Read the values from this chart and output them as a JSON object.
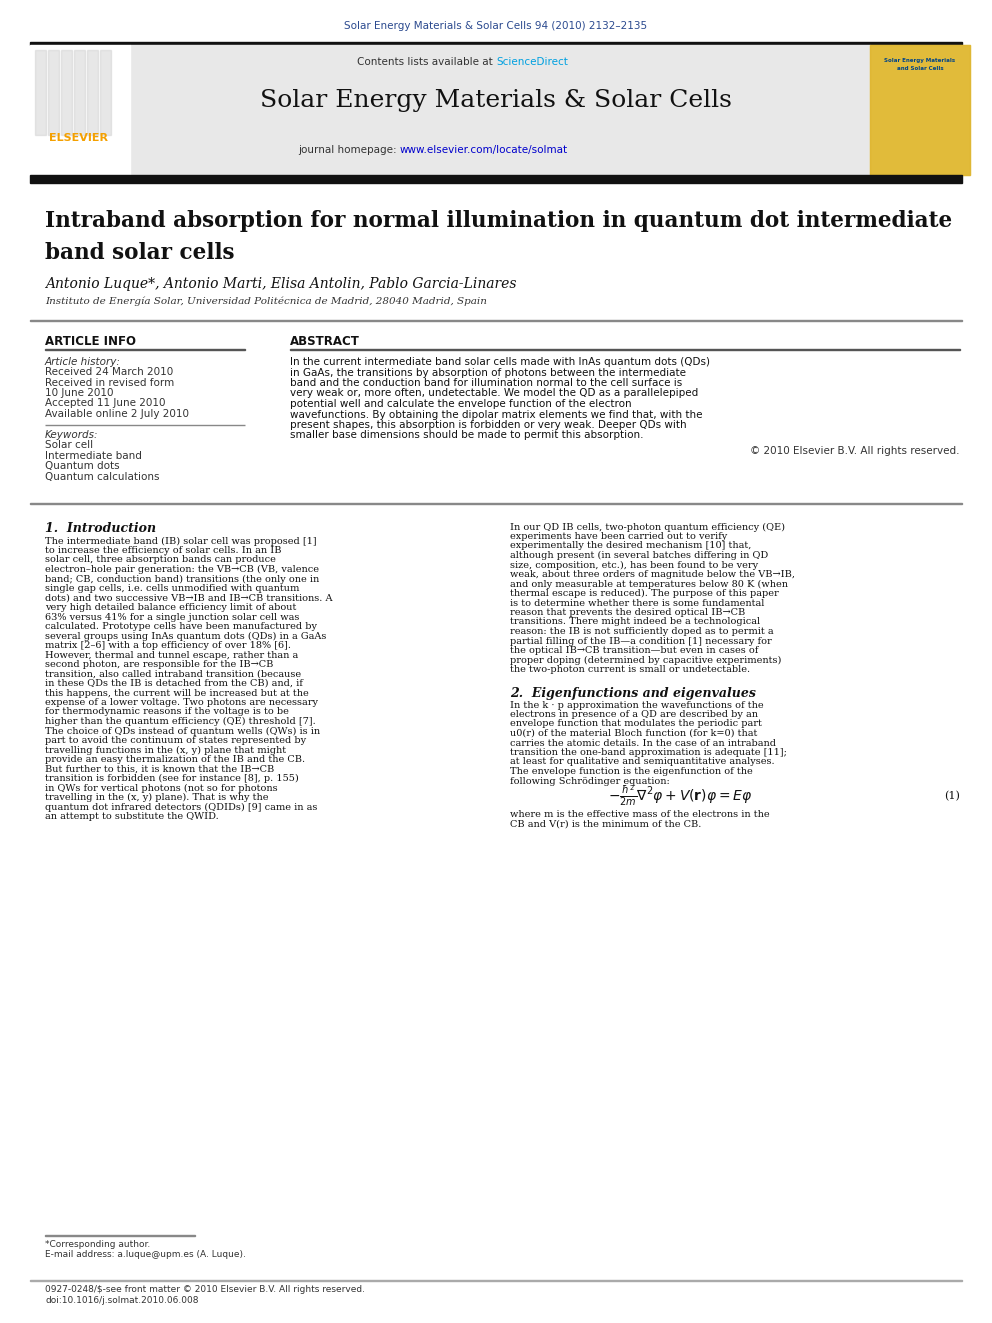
{
  "page_bg": "#ffffff",
  "top_journal_line": "Solar Energy Materials & Solar Cells 94 (2010) 2132–2135",
  "journal_title": "Solar Energy Materials & Solar Cells",
  "contents_line": "Contents lists available at ScienceDirect",
  "journal_homepage": "journal homepage: www.elsevier.com/locate/solmat",
  "paper_title": "Intraband absorption for normal illumination in quantum dot intermediate\nband solar cells",
  "authors": "Antonio Luque*, Antonio Marti, Elisa Antolin, Pablo Garcia-Linares",
  "affiliation": "Instituto de Energía Solar, Universidad Politécnica de Madrid, 28040 Madrid, Spain",
  "article_info_header": "ARTICLE INFO",
  "abstract_header": "ABSTRACT",
  "article_history_label": "Article history:",
  "history_lines": [
    "Received 24 March 2010",
    "Received in revised form",
    "10 June 2010",
    "Accepted 11 June 2010",
    "Available online 2 July 2010"
  ],
  "keywords_label": "Keywords:",
  "keywords": [
    "Solar cell",
    "Intermediate band",
    "Quantum dots",
    "Quantum calculations"
  ],
  "abstract_text": "In the current intermediate band solar cells made with InAs quantum dots (QDs) in GaAs, the transitions by absorption of photons between the intermediate band and the conduction band for illumination normal to the cell surface is very weak or, more often, undetectable. We model the QD as a parallelepiped potential well and calculate the envelope function of the electron wavefunctions. By obtaining the dipolar matrix elements we find that, with the present shapes, this absorption is forbidden or very weak. Deeper QDs with smaller base dimensions should be made to permit this absorption.",
  "copyright_line": "© 2010 Elsevier B.V. All rights reserved.",
  "section1_header": "1.  Introduction",
  "intro_col1_text": "The intermediate band (IB) solar cell was proposed [1] to increase the efficiency of solar cells. In an IB solar cell, three absorption bands can produce electron–hole pair generation: the VB→CB (VB, valence band; CB, conduction band) transitions (the only one in single gap cells, i.e. cells unmodified with quantum dots) and two successive VB→IB and IB→CB transitions. A very high detailed balance efficiency limit of about 63% versus 41% for a single junction solar cell was calculated.\n     Prototype cells have been manufactured by several groups using InAs quantum dots (QDs) in a GaAs matrix [2–6] with a top efficiency of over 18% [6]. However, thermal and tunnel escape, rather than a second photon, are responsible for the IB→CB transition, also called intraband transition (because in these QDs the IB is detached from the CB) and, if this happens, the current will be increased but at the expense of a lower voltage. Two photons are necessary for thermodynamic reasons if the voltage is to be higher than the quantum efficiency (QE) threshold [7].\n     The choice of QDs instead of quantum wells (QWs) is in part to avoid the continuum of states represented by travelling functions in the (x, y) plane that might provide an easy thermalization of the IB and the CB. But further to this, it is known that the IB→CB transition is forbidden (see for instance [8], p. 155) in QWs for vertical photons (not so for photons travelling in the (x, y) plane). That is why the quantum dot infrared detectors (QDIDs) [9] came in as an attempt to substitute the QWID.",
  "intro_col2_text": "In our QD IB cells, two-photon quantum efficiency (QE) experiments have been carried out to verify experimentally the desired mechanism [10] that, although present (in several batches differing in QD size, composition, etc.), has been found to be very weak, about three orders of magnitude below the VB→IB, and only measurable at temperatures below 80 K (when thermal escape is reduced). The purpose of this paper is to determine whether there is some fundamental reason that prevents the desired optical IB→CB transitions. There might indeed be a technological reason: the IB is not sufficiently doped as to permit a partial filling of the IB—a condition [1] necessary for the optical IB→CB transition—but even in cases of proper doping (determined by capacitive experiments) the two-photon current is small or undetectable.",
  "section2_header": "2.  Eigenfunctions and eigenvalues",
  "section2_col2_text": "In the k · p approximation the wavefunctions of the electrons in presence of a QD are described by an envelope function that modulates the periodic part u0(r) of the material Bloch function (for k=0) that carries the atomic details. In the case of an intraband transition the one-band approximation is adequate [11]; at least for qualitative and semiquantitative analyses. The envelope function is the eigenfunction of the following Schrödinger equation:",
  "equation1": "ħ²/2m ∇²φ + V(r)φ = Eφ",
  "equation1_label": "(1)",
  "equation1_note": "where m is the effective mass of the electrons in the CB and V(r) is the minimum of the CB.",
  "footnote": "*Corresponding author.",
  "footnote2": "E-mail address: a.luque@upm.es (A. Luque).",
  "footer_line1": "0927-0248/$-see front matter © 2010 Elsevier B.V. All rights reserved.",
  "footer_line2": "doi:10.1016/j.solmat.2010.06.008",
  "header_bg": "#e8e8e8",
  "header_banner_bg": "#d0d0d0",
  "elsevier_orange": "#f4a000",
  "journal_title_color_dark": "#1a1a2e",
  "top_line_color": "#2b4a8f",
  "sciencedirect_color": "#00a0e0",
  "url_color": "#0000cc",
  "section_header_color": "#8b0000"
}
